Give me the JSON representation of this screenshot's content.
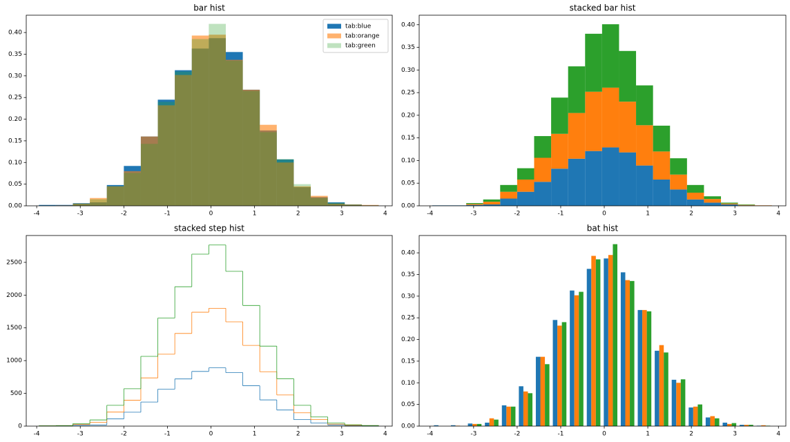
{
  "chart_data": [
    {
      "type": "histogram",
      "title": "bar hist",
      "histtype": "bar",
      "multiple": "layer",
      "legend": "upper right",
      "bins": [
        -3.95,
        -3.56,
        -3.17,
        -2.78,
        -2.39,
        -2.0,
        -1.61,
        -1.22,
        -0.83,
        -0.44,
        -0.05,
        0.34,
        0.73,
        1.12,
        1.51,
        1.9,
        2.29,
        2.68,
        3.07,
        3.46,
        3.85
      ],
      "series": [
        {
          "name": "tab:blue",
          "color": "#1f77b4",
          "alpha": 1,
          "values": [
            0.002,
            0.002,
            0.006,
            0.008,
            0.048,
            0.092,
            0.16,
            0.245,
            0.313,
            0.363,
            0.387,
            0.355,
            0.268,
            0.174,
            0.107,
            0.043,
            0.02,
            0.008,
            0.003,
            0.001
          ]
        },
        {
          "name": "tab:orange",
          "color": "#ff7f0e",
          "alpha": 0.6,
          "values": [
            0,
            0.001,
            0.005,
            0.018,
            0.045,
            0.08,
            0.16,
            0.232,
            0.302,
            0.393,
            0.395,
            0.337,
            0.268,
            0.187,
            0.1,
            0.045,
            0.023,
            0.005,
            0.003,
            0.002
          ]
        },
        {
          "name": "tab:green",
          "color": "#2ca02c",
          "alpha": 0.3,
          "values": [
            0,
            0,
            0.005,
            0.015,
            0.045,
            0.076,
            0.143,
            0.24,
            0.31,
            0.385,
            0.42,
            0.335,
            0.265,
            0.17,
            0.108,
            0.05,
            0.018,
            0.007,
            0.003,
            0.001
          ]
        }
      ],
      "xlim": [
        -4.24,
        4.16
      ],
      "ylim": [
        0,
        0.44
      ],
      "xticks": [
        -4,
        -3,
        -2,
        -1,
        0,
        1,
        2,
        3,
        4
      ],
      "yticks": [
        {
          "value": 0,
          "label": "0.00"
        },
        {
          "value": 0.05,
          "label": "0.05"
        },
        {
          "value": 0.1,
          "label": "0.10"
        },
        {
          "value": 0.15,
          "label": "0.15"
        },
        {
          "value": 0.2,
          "label": "0.20"
        },
        {
          "value": 0.25,
          "label": "0.25"
        },
        {
          "value": 0.3,
          "label": "0.30"
        },
        {
          "value": 0.35,
          "label": "0.35"
        },
        {
          "value": 0.4,
          "label": "0.40"
        }
      ]
    },
    {
      "type": "histogram",
      "title": "stacked bar hist",
      "histtype": "bar",
      "multiple": "stack",
      "bins": [
        -3.95,
        -3.56,
        -3.17,
        -2.78,
        -2.39,
        -2.0,
        -1.61,
        -1.22,
        -0.83,
        -0.44,
        -0.05,
        0.34,
        0.73,
        1.12,
        1.51,
        1.9,
        2.29,
        2.68,
        3.07,
        3.46,
        3.85
      ],
      "series": [
        {
          "color": "#1f77b4",
          "values": [
            0.001,
            0.001,
            0.002,
            0.003,
            0.016,
            0.031,
            0.053,
            0.082,
            0.104,
            0.121,
            0.129,
            0.118,
            0.089,
            0.058,
            0.036,
            0.014,
            0.007,
            0.003,
            0.001,
            0.0
          ]
        },
        {
          "color": "#ff7f0e",
          "values": [
            0,
            0,
            0.002,
            0.006,
            0.015,
            0.027,
            0.053,
            0.077,
            0.101,
            0.131,
            0.132,
            0.112,
            0.089,
            0.062,
            0.033,
            0.015,
            0.008,
            0.002,
            0.001,
            0.001
          ]
        },
        {
          "color": "#2ca02c",
          "values": [
            0,
            0,
            0.002,
            0.005,
            0.015,
            0.025,
            0.048,
            0.08,
            0.103,
            0.128,
            0.14,
            0.112,
            0.088,
            0.057,
            0.036,
            0.017,
            0.006,
            0.002,
            0.001,
            0.0
          ]
        }
      ],
      "xlim": [
        -4.25,
        4.17
      ],
      "ylim": [
        0,
        0.421
      ],
      "xticks": [
        -4,
        -3,
        -2,
        -1,
        0,
        1,
        2,
        3,
        4
      ],
      "yticks": [
        {
          "value": 0,
          "label": "0.00"
        },
        {
          "value": 0.05,
          "label": "0.05"
        },
        {
          "value": 0.1,
          "label": "0.10"
        },
        {
          "value": 0.15,
          "label": "0.15"
        },
        {
          "value": 0.2,
          "label": "0.20"
        },
        {
          "value": 0.25,
          "label": "0.25"
        },
        {
          "value": 0.3,
          "label": "0.30"
        },
        {
          "value": 0.35,
          "label": "0.35"
        },
        {
          "value": 0.4,
          "label": "0.40"
        }
      ]
    },
    {
      "type": "histogram",
      "title": "stacked step hist",
      "histtype": "step",
      "multiple": "stack",
      "bins": [
        -3.95,
        -3.56,
        -3.17,
        -2.78,
        -2.39,
        -2.0,
        -1.61,
        -1.22,
        -0.83,
        -0.44,
        -0.05,
        0.34,
        0.73,
        1.12,
        1.51,
        1.9,
        2.29,
        2.68,
        3.07,
        3.46,
        3.85
      ],
      "series": [
        {
          "color": "#1f77b4",
          "values": [
            5,
            5,
            14,
            18,
            110,
            212,
            368,
            564,
            720,
            835,
            890,
            817,
            616,
            400,
            246,
            99,
            46,
            18,
            7,
            2
          ]
        },
        {
          "color": "#ff7f0e",
          "values": [
            0,
            2,
            12,
            41,
            104,
            184,
            368,
            534,
            695,
            904,
            909,
            775,
            616,
            430,
            230,
            104,
            53,
            12,
            7,
            5
          ]
        },
        {
          "color": "#2ca02c",
          "values": [
            0,
            0,
            12,
            35,
            104,
            175,
            329,
            552,
            713,
            886,
            966,
            771,
            610,
            391,
            248,
            115,
            41,
            16,
            7,
            2
          ]
        }
      ],
      "xlim": [
        -4.24,
        4.16
      ],
      "ylim": [
        0,
        2910
      ],
      "xticks": [
        -4,
        -3,
        -2,
        -1,
        0,
        1,
        2,
        3,
        4
      ],
      "yticks": [
        0,
        500,
        1000,
        1500,
        2000,
        2500
      ]
    },
    {
      "type": "histogram",
      "title": "bat hist",
      "histtype": "bar",
      "multiple": "dodge",
      "bins": [
        -3.95,
        -3.56,
        -3.17,
        -2.78,
        -2.39,
        -2.0,
        -1.61,
        -1.22,
        -0.83,
        -0.44,
        -0.05,
        0.34,
        0.73,
        1.12,
        1.51,
        1.9,
        2.29,
        2.68,
        3.07,
        3.46,
        3.85
      ],
      "series": [
        {
          "color": "#1f77b4",
          "values": [
            0.002,
            0.002,
            0.006,
            0.008,
            0.048,
            0.092,
            0.16,
            0.245,
            0.313,
            0.363,
            0.387,
            0.355,
            0.268,
            0.174,
            0.107,
            0.043,
            0.02,
            0.008,
            0.003,
            0.001
          ]
        },
        {
          "color": "#ff7f0e",
          "values": [
            0,
            0.001,
            0.005,
            0.018,
            0.045,
            0.08,
            0.16,
            0.232,
            0.302,
            0.393,
            0.395,
            0.337,
            0.268,
            0.187,
            0.1,
            0.045,
            0.023,
            0.005,
            0.003,
            0.002
          ]
        },
        {
          "color": "#2ca02c",
          "values": [
            0,
            0,
            0.005,
            0.015,
            0.045,
            0.076,
            0.143,
            0.24,
            0.31,
            0.385,
            0.42,
            0.335,
            0.265,
            0.17,
            0.108,
            0.05,
            0.018,
            0.007,
            0.003,
            0.001
          ]
        }
      ],
      "xlim": [
        -4.25,
        4.17
      ],
      "ylim": [
        0,
        0.44
      ],
      "xticks": [
        -4,
        -3,
        -2,
        -1,
        0,
        1,
        2,
        3,
        4
      ],
      "yticks": [
        {
          "value": 0,
          "label": "0.00"
        },
        {
          "value": 0.05,
          "label": "0.05"
        },
        {
          "value": 0.1,
          "label": "0.10"
        },
        {
          "value": 0.15,
          "label": "0.15"
        },
        {
          "value": 0.2,
          "label": "0.20"
        },
        {
          "value": 0.25,
          "label": "0.25"
        },
        {
          "value": 0.3,
          "label": "0.30"
        },
        {
          "value": 0.35,
          "label": "0.35"
        },
        {
          "value": 0.4,
          "label": "0.40"
        }
      ]
    }
  ]
}
